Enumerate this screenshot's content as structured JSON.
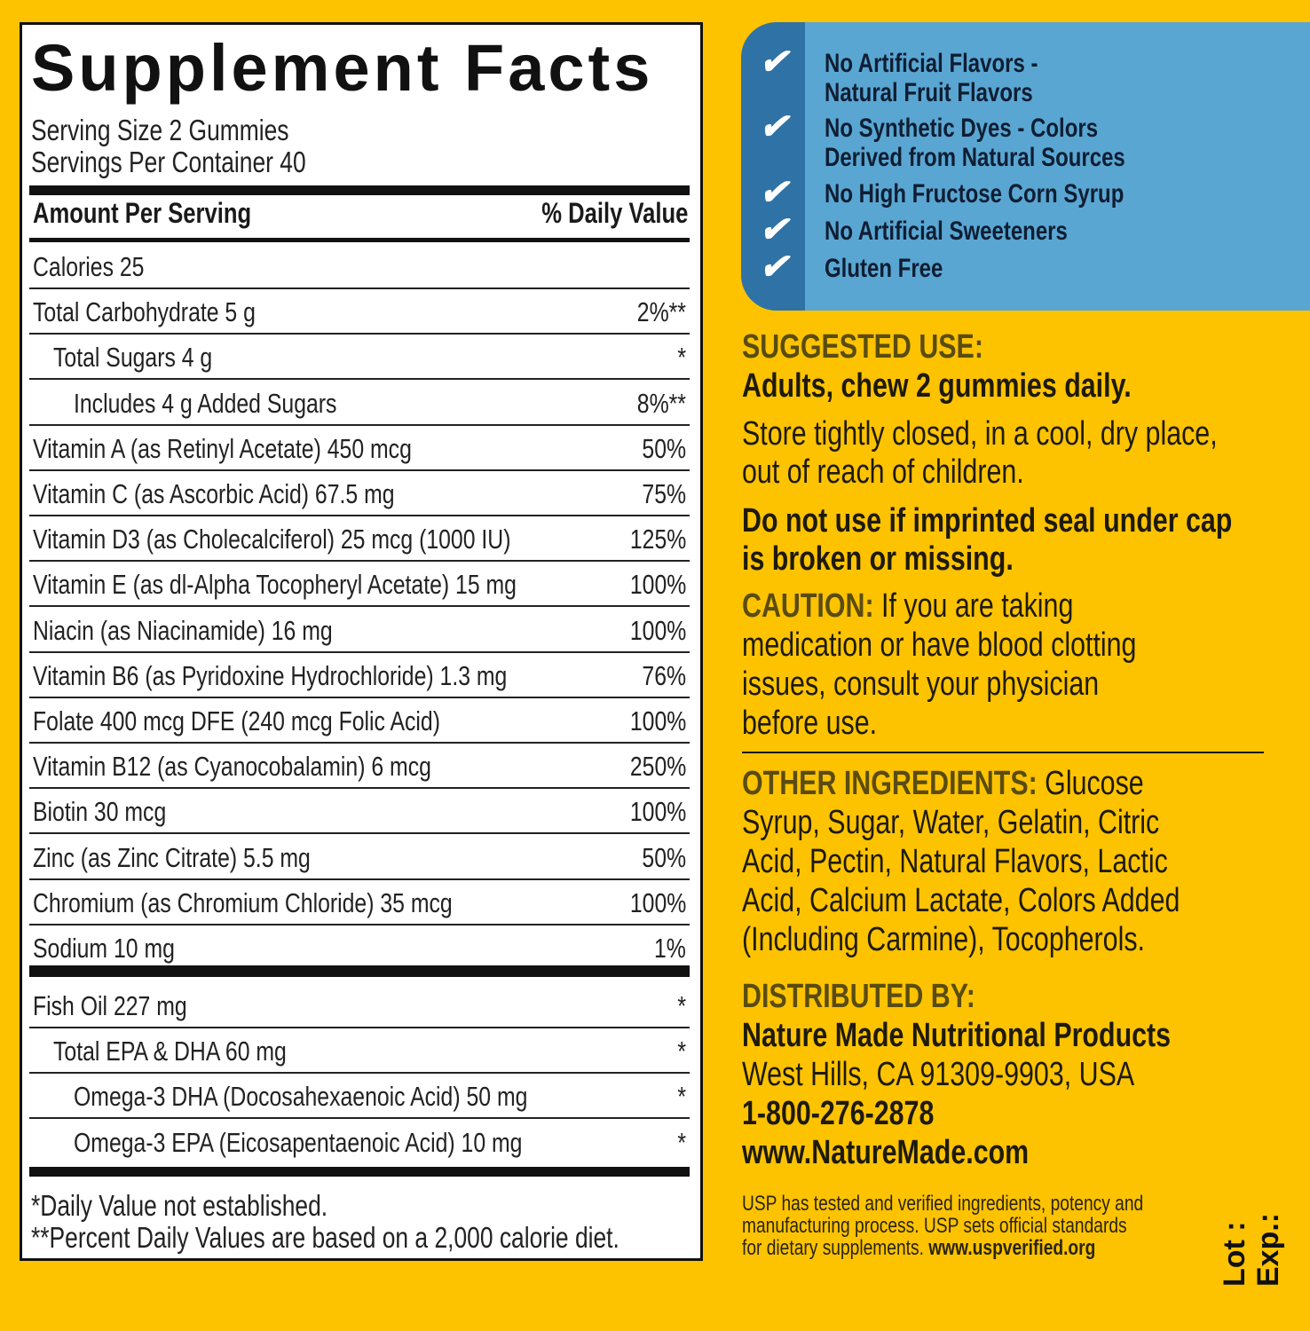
{
  "facts": {
    "title": "Supplement Facts",
    "serving_size": "Serving Size 2 Gummies",
    "servings_per_container": "Servings Per Container 40",
    "amount_header": "Amount Per Serving",
    "dv_header": "% Daily Value",
    "rows": [
      {
        "label": "Calories  25",
        "dv": "",
        "indent": 0
      },
      {
        "label": "Total Carbohydrate  5 g",
        "dv": "2%**",
        "indent": 0
      },
      {
        "label": "Total Sugars  4 g",
        "dv": "*",
        "indent": 1
      },
      {
        "label": "Includes 4 g Added Sugars",
        "dv": "8%**",
        "indent": 2
      },
      {
        "label": "Vitamin A (as Retinyl Acetate)  450 mcg",
        "dv": "50%",
        "indent": 0
      },
      {
        "label": "Vitamin C (as Ascorbic Acid)  67.5 mg",
        "dv": "75%",
        "indent": 0
      },
      {
        "label": "Vitamin D3 (as Cholecalciferol)  25 mcg (1000 IU)",
        "dv": "125%",
        "indent": 0
      },
      {
        "label": "Vitamin E (as dl-Alpha Tocopheryl Acetate)  15 mg",
        "dv": "100%",
        "indent": 0
      },
      {
        "label": "Niacin (as Niacinamide)  16 mg",
        "dv": "100%",
        "indent": 0
      },
      {
        "label": "Vitamin B6 (as Pyridoxine Hydrochloride)  1.3 mg",
        "dv": "76%",
        "indent": 0
      },
      {
        "label": "Folate  400 mcg DFE (240 mcg Folic Acid)",
        "dv": "100%",
        "indent": 0
      },
      {
        "label": "Vitamin B12 (as Cyanocobalamin)  6 mcg",
        "dv": "250%",
        "indent": 0
      },
      {
        "label": "Biotin  30 mcg",
        "dv": "100%",
        "indent": 0
      },
      {
        "label": "Zinc (as Zinc Citrate)  5.5 mg",
        "dv": "50%",
        "indent": 0
      },
      {
        "label": "Chromium (as Chromium Chloride)  35 mcg",
        "dv": "100%",
        "indent": 0
      },
      {
        "label": "Sodium  10  mg",
        "dv": "1%",
        "indent": 0
      }
    ],
    "rows2": [
      {
        "label": "Fish Oil  227 mg",
        "dv": "*",
        "indent": 0
      },
      {
        "label": "Total EPA & DHA  60 mg",
        "dv": "*",
        "indent": 1
      },
      {
        "label": "Omega-3 DHA (Docosahexaenoic Acid)  50 mg",
        "dv": "*",
        "indent": 2
      },
      {
        "label": "Omega-3 EPA (Eicosapentaenoic Acid)  10 mg",
        "dv": "*",
        "indent": 2
      }
    ],
    "footnote1": " *Daily Value not established.",
    "footnote2": "**Percent Daily Values are based on a 2,000 calorie diet."
  },
  "claims": {
    "icon": "checkmark-icon",
    "colors": {
      "box": "#5aa6d2",
      "strip": "#2f72a6",
      "background": "#fdc300"
    },
    "items": [
      [
        "No Artificial Flavors -",
        "Natural Fruit Flavors"
      ],
      [
        "No Synthetic Dyes - Colors",
        "Derived from Natural Sources"
      ],
      [
        "No High Fructose Corn Syrup"
      ],
      [
        "No Artificial Sweeteners"
      ],
      [
        "Gluten Free"
      ]
    ]
  },
  "suggested_use": {
    "heading": "SUGGESTED USE:",
    "directions": "Adults, chew 2 gummies daily.",
    "storage": [
      "Store tightly closed, in a cool, dry place,",
      "out of reach of children."
    ],
    "seal": [
      "Do not use if imprinted seal under cap",
      "is broken or missing."
    ]
  },
  "caution": {
    "heading": "CAUTION:",
    "lines": [
      " If you are taking",
      "medication or have blood clotting",
      "issues, consult your physician",
      "before use."
    ]
  },
  "other_ingredients": {
    "heading": "OTHER INGREDIENTS:",
    "lines": [
      " Glucose",
      "Syrup, Sugar, Water, Gelatin, Citric",
      "Acid, Pectin, Natural Flavors, Lactic",
      "Acid, Calcium Lactate, Colors Added",
      "(Including Carmine), Tocopherols."
    ]
  },
  "distributor": {
    "heading": "DISTRIBUTED BY:",
    "name": "Nature Made Nutritional Products",
    "address": "West Hills, CA 91309-9903, USA",
    "phone": "1-800-276-2878",
    "website": "www.NatureMade.com"
  },
  "usp": {
    "lines": [
      "USP has tested and verified ingredients, potency and",
      "manufacturing process. USP sets official standards",
      "for dietary supplements. "
    ],
    "link": "www.uspverified.org"
  },
  "lot_label": "Lot :",
  "exp_label": "Exp.:"
}
